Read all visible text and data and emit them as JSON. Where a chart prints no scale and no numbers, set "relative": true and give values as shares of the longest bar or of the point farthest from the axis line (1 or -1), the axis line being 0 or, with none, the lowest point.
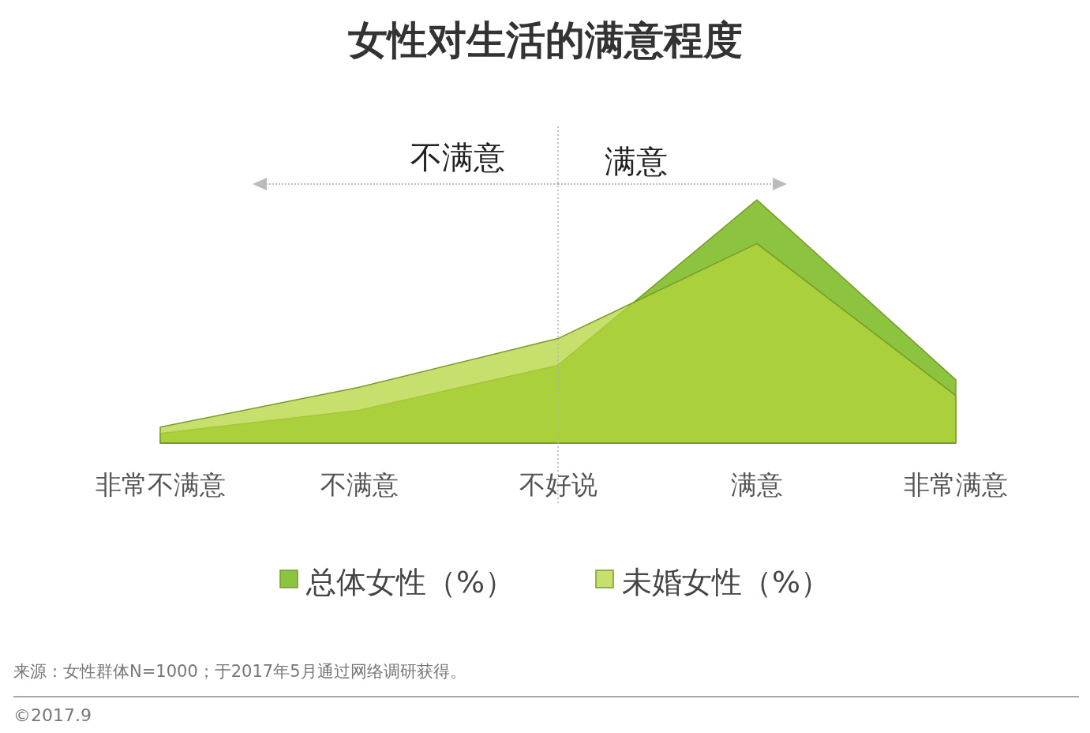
{
  "chart_data": {
    "type": "area",
    "title": "女性对生活的满意程度",
    "relative": true,
    "categories": [
      "非常不满意",
      "不满意",
      "不好说",
      "满意",
      "非常满意"
    ],
    "series": [
      {
        "name": "总体女性（%）",
        "color": "#8cc43f",
        "values": [
          0.04,
          0.135,
          0.32,
          1,
          0.26
        ]
      },
      {
        "name": "未婚女性（%）",
        "color": "#b4d43c",
        "values": [
          0.066,
          0.23,
          0.43,
          0.82,
          0.195
        ]
      }
    ],
    "ref_lines": [
      {
        "axis": "x",
        "value": "不好说",
        "line_style": "dotted",
        "color": "#b0b0b0"
      }
    ],
    "annotations": [
      "不满意",
      "满意",
      "来源：女性群体N=1000；于2017年5月通过网络调研获得。",
      "©2017.9"
    ],
    "legend": "bottom"
  }
}
